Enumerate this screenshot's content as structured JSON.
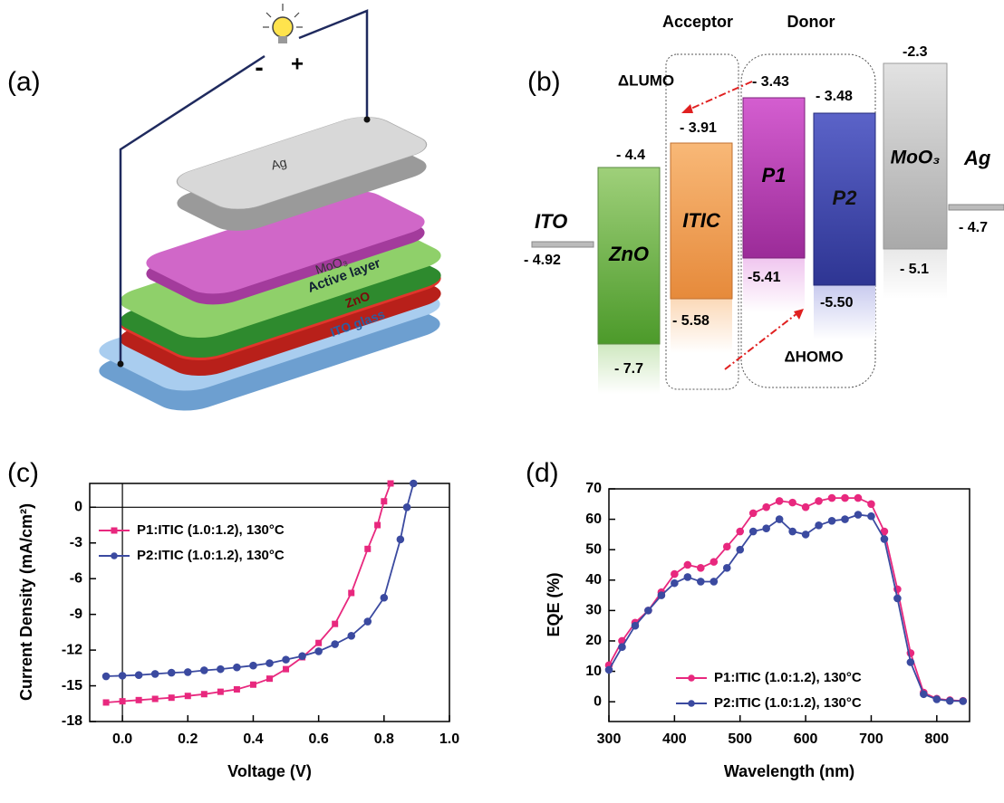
{
  "diagram_a": {
    "panel_label": "(a)",
    "minus": "-",
    "plus": "+",
    "layers": [
      "Ag",
      "MoO₃",
      "Active layer",
      "ZnO",
      "ITO  glass"
    ]
  },
  "diagram_b": {
    "panel_label": "(b)",
    "acceptor": "Acceptor",
    "donor": "Donor",
    "delta_lumo": "ΔLUMO",
    "delta_homo": "ΔHOMO",
    "ito": {
      "name": "ITO",
      "level": "- 4.92"
    },
    "ag": {
      "name": "Ag",
      "level": "- 4.7"
    },
    "materials": [
      {
        "name": "ZnO",
        "lumo": "- 4.4",
        "homo": "- 7.7"
      },
      {
        "name": "ITIC",
        "lumo": "- 3.91",
        "homo": "- 5.58"
      },
      {
        "name": "P1",
        "lumo": "- 3.43",
        "homo": "-5.41"
      },
      {
        "name": "P2",
        "lumo": "- 3.48",
        "homo": "-5.50"
      },
      {
        "name": "MoO₃",
        "lumo": "-2.3",
        "homo": "- 5.1"
      }
    ]
  },
  "chart_data": [
    {
      "type": "line",
      "panel_label": "(c)",
      "x_label": "Voltage (V)",
      "y_label": "Current Density (mA/cm²)",
      "xlim": [
        -0.1,
        1.0
      ],
      "ylim": [
        -18,
        2
      ],
      "xticks": [
        {
          "value": 0,
          "label": "0.0"
        },
        0.2,
        0.4,
        0.6,
        0.8,
        {
          "value": 1,
          "label": "1.0"
        }
      ],
      "yticks": [
        0,
        -3,
        -6,
        -9,
        -12,
        -15,
        -18
      ],
      "zero_lines": true,
      "legend": "upper left",
      "series": [
        {
          "name": "P1:ITIC (1.0:1.2), 130°C",
          "color": "#e8287e",
          "marker": "square",
          "x": [
            -0.05,
            0,
            0.05,
            0.1,
            0.15,
            0.2,
            0.25,
            0.3,
            0.35,
            0.4,
            0.45,
            0.5,
            0.55,
            0.6,
            0.65,
            0.7,
            0.75,
            0.78,
            0.8,
            0.82
          ],
          "values": [
            -16.4,
            -16.3,
            -16.2,
            -16.1,
            -16.0,
            -15.85,
            -15.7,
            -15.5,
            -15.3,
            -14.9,
            -14.4,
            -13.6,
            -12.6,
            -11.4,
            -9.8,
            -7.2,
            -3.5,
            -1.5,
            0.5,
            2.0
          ]
        },
        {
          "name": "P2:ITIC (1.0:1.2), 130°C",
          "color": "#3b4aa0",
          "marker": "circle",
          "x": [
            -0.05,
            0,
            0.05,
            0.1,
            0.15,
            0.2,
            0.25,
            0.3,
            0.35,
            0.4,
            0.45,
            0.5,
            0.55,
            0.6,
            0.65,
            0.7,
            0.75,
            0.8,
            0.85,
            0.87,
            0.89
          ],
          "values": [
            -14.2,
            -14.15,
            -14.1,
            -14.0,
            -13.9,
            -13.85,
            -13.7,
            -13.6,
            -13.45,
            -13.3,
            -13.1,
            -12.8,
            -12.5,
            -12.1,
            -11.5,
            -10.8,
            -9.6,
            -7.6,
            -2.7,
            0,
            2.0
          ]
        }
      ]
    },
    {
      "type": "line",
      "panel_label": "(d)",
      "x_label": "Wavelength (nm)",
      "y_label": "EQE (%)",
      "xlim": [
        300,
        850
      ],
      "ylim": [
        -6.5,
        70
      ],
      "xticks": [
        300,
        400,
        500,
        600,
        700,
        800
      ],
      "yticks": [
        0,
        10,
        20,
        30,
        40,
        50,
        60,
        70
      ],
      "zero_lines": false,
      "legend": "lower center",
      "x": [
        300,
        320,
        340,
        360,
        380,
        400,
        420,
        440,
        460,
        480,
        500,
        520,
        540,
        560,
        580,
        600,
        620,
        640,
        660,
        680,
        700,
        720,
        740,
        760,
        780,
        800,
        820,
        840
      ],
      "series": [
        {
          "name": "P1:ITIC (1.0:1.2), 130°C",
          "color": "#e8287e",
          "marker": "circle",
          "values": [
            12,
            20,
            26,
            30,
            36,
            42,
            45,
            44,
            46,
            51,
            56,
            62,
            64,
            66,
            65.5,
            64,
            66,
            67,
            67,
            67,
            65,
            56,
            37,
            16,
            3,
            1,
            0.5,
            0.3
          ]
        },
        {
          "name": "P2:ITIC (1.0:1.2), 130°C",
          "color": "#3b4aa0",
          "marker": "circle",
          "values": [
            10.5,
            18,
            25,
            30,
            35,
            39,
            41,
            39.5,
            39.5,
            44,
            50,
            56,
            57,
            60,
            56,
            55,
            58,
            59.5,
            60,
            61.5,
            61,
            53.5,
            34,
            13,
            2.5,
            0.8,
            0.3,
            0.2
          ]
        }
      ]
    }
  ]
}
